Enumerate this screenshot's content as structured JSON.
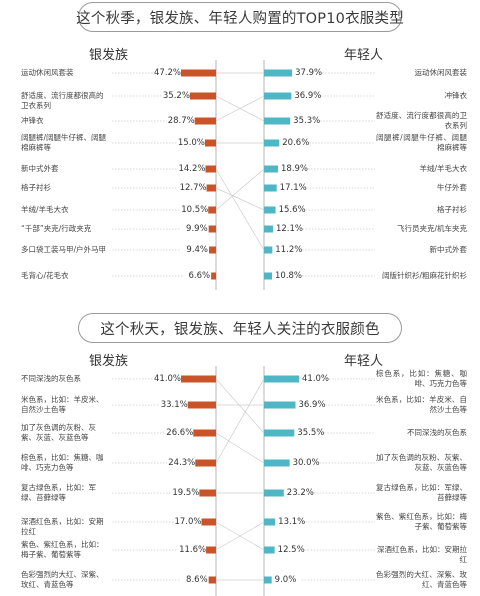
{
  "colors": {
    "left_bar": "#c9542a",
    "right_bar": "#4fb6c6",
    "axis": "#b5b5b5",
    "dash": "#b0b0b0",
    "guide": "#cccccc"
  },
  "chart_data": [
    {
      "type": "bar",
      "title": "这个秋季，银发族、年轻人购置的TOP10衣服类型",
      "left": {
        "name": "银发族",
        "categories": [
          "运动休闲风套装",
          "舒适度、流行度都很高的卫衣系列",
          "冲锋衣",
          "阔腿裤/阔腿牛仔裤、阔腿棉麻裤等",
          "新中式外套",
          "格子衬衫",
          "羊绒/羊毛大衣",
          "“千部”夹克/行政夹克",
          "多口袋工装马甲/户外马甲",
          "毛背心/花毛衣"
        ],
        "values": [
          47.2,
          35.2,
          28.7,
          15.0,
          14.2,
          12.7,
          10.5,
          9.9,
          9.4,
          6.6
        ]
      },
      "right": {
        "name": "年轻人",
        "categories": [
          "运动休闲风套装",
          "冲锋衣",
          "舒适度、流行度都很高的卫衣系列",
          "阔腿裤/阔腿牛仔裤、阔腿棉麻裤等",
          "羊绒/羊毛大衣",
          "牛仔外套",
          "格子衬衫",
          "飞行员夹克/机车夹克",
          "新中式外套",
          "阔版针织衫/粗麻花针织衫"
        ],
        "values": [
          37.9,
          36.9,
          35.3,
          20.6,
          18.9,
          17.1,
          15.6,
          12.1,
          11.2,
          10.8
        ]
      }
    },
    {
      "type": "bar",
      "title": "这个秋天，银发族、年轻人关注的衣服颜色",
      "left": {
        "name": "银发族",
        "categories": [
          "不同深浅的灰色系",
          "米色系，比如：羊皮米、自然沙土色等",
          "加了灰色调的灰粉、灰紫、灰蓝、灰蓝色等",
          "棕色系，比如：焦糖、咖啡、巧克力色等",
          "复古绿色系，比如：军绿、苔藓绿等",
          "深酒红色系，比如：安期拉红",
          "紫色、紫红色系，比如：梅子紫、葡萄紫等",
          "色彩强烈的大红、深紫、玫红、青蓝色等"
        ],
        "values": [
          41.0,
          33.1,
          26.6,
          24.3,
          19.5,
          17.0,
          11.6,
          8.6
        ]
      },
      "right": {
        "name": "年轻人",
        "categories": [
          "棕色系，比如：焦糖、咖啡、巧克力色等",
          "米色系，比如：羊皮米、自然沙土色等",
          "不同深浅的灰色系",
          "加了灰色调的灰粉、灰紫、灰蓝、灰蓝色等",
          "复古绿色系，比如：军绿、苔藓绿等",
          "紫色、紫红色系，比如：梅子紫、葡萄紫等",
          "深酒红色系，比如：安期拉红",
          "色彩强烈的大红、深紫、玫红、青蓝色等"
        ],
        "values": [
          41.0,
          36.9,
          35.5,
          30.0,
          23.2,
          13.1,
          12.5,
          9.0
        ]
      }
    }
  ]
}
